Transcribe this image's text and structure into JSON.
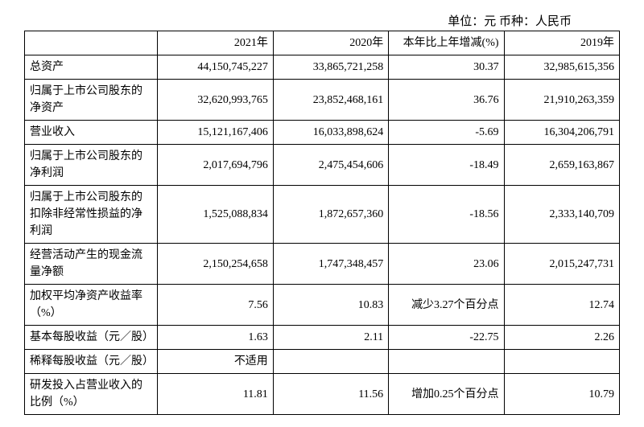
{
  "unit_text": "单位：元  币种：人民币",
  "headers": {
    "blank": "",
    "y2021": "2021年",
    "y2020": "2020年",
    "change": "本年比上年增减(%)",
    "y2019": "2019年"
  },
  "rows": [
    {
      "label": "总资产",
      "y2021": "44,150,745,227",
      "y2020": "33,865,721,258",
      "change": "30.37",
      "y2019": "32,985,615,356"
    },
    {
      "label": "归属于上市公司股东的净资产",
      "y2021": "32,620,993,765",
      "y2020": "23,852,468,161",
      "change": "36.76",
      "y2019": "21,910,263,359"
    },
    {
      "label": "营业收入",
      "y2021": "15,121,167,406",
      "y2020": "16,033,898,624",
      "change": "-5.69",
      "y2019": "16,304,206,791"
    },
    {
      "label": "归属于上市公司股东的净利润",
      "y2021": "2,017,694,796",
      "y2020": "2,475,454,606",
      "change": "-18.49",
      "y2019": "2,659,163,867"
    },
    {
      "label": "归属于上市公司股东的扣除非经常性损益的净利润",
      "y2021": "1,525,088,834",
      "y2020": "1,872,657,360",
      "change": "-18.56",
      "y2019": "2,333,140,709"
    },
    {
      "label": "经营活动产生的现金流量净额",
      "y2021": "2,150,254,658",
      "y2020": "1,747,348,457",
      "change": "23.06",
      "y2019": "2,015,247,731"
    },
    {
      "label": "加权平均净资产收益率（%）",
      "y2021": "7.56",
      "y2020": "10.83",
      "change": "减少3.27个百分点",
      "y2019": "12.74"
    },
    {
      "label": "基本每股收益（元／股）",
      "y2021": "1.63",
      "y2020": "2.11",
      "change": "-22.75",
      "y2019": "2.26"
    },
    {
      "label": "稀释每股收益（元／股）",
      "y2021": "不适用",
      "y2020": "",
      "change": "",
      "y2019": ""
    },
    {
      "label": "研发投入占营业收入的比例（%）",
      "y2021": "11.81",
      "y2020": "11.56",
      "change": "增加0.25个百分点",
      "y2019": "10.79"
    }
  ]
}
